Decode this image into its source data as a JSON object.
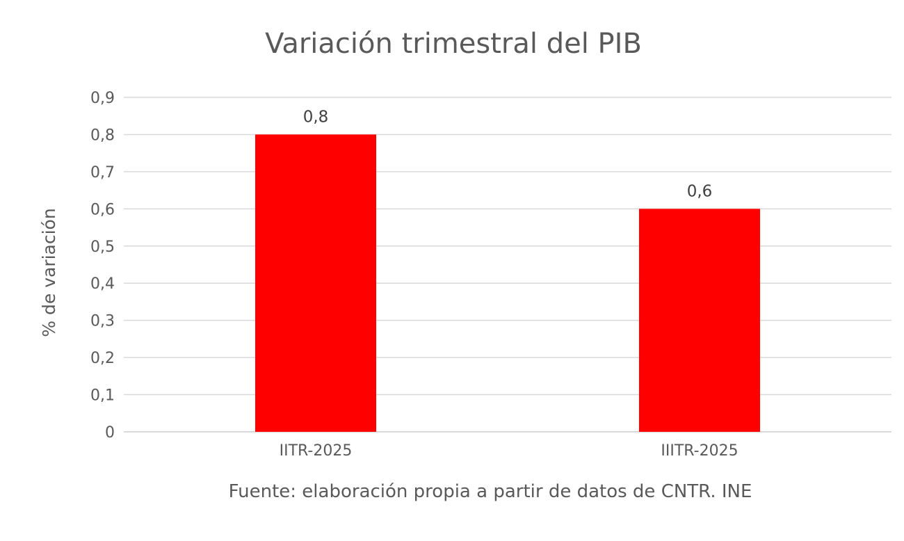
{
  "chart_data": {
    "type": "bar",
    "title": "Variación trimestral del PIB",
    "ylabel": "% de variación",
    "xlabel": "",
    "categories": [
      "IITR-2025",
      "IIITR-2025"
    ],
    "values": [
      0.8,
      0.6
    ],
    "data_labels": [
      "0,8",
      "0,6"
    ],
    "ylim": [
      0,
      0.9
    ],
    "yticks": [
      0,
      0.1,
      0.2,
      0.3,
      0.4,
      0.5,
      0.6,
      0.7,
      0.8,
      0.9
    ],
    "ytick_labels": [
      "0",
      "0,1",
      "0,2",
      "0,3",
      "0,4",
      "0,5",
      "0,6",
      "0,7",
      "0,8",
      "0,9"
    ],
    "grid": true,
    "legend": "none",
    "bar_color": "#FF0000",
    "grid_color": "#D9D9D9",
    "source": "Fuente: elaboración propia a partir de datos de CNTR. INE"
  }
}
